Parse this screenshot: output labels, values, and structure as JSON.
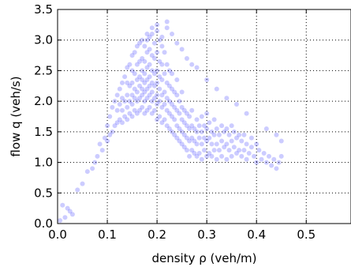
{
  "chart_data": {
    "type": "scatter",
    "title": "",
    "xlabel": "density ρ (veh/m)",
    "ylabel": "flow q (veh/s)",
    "xlim": [
      0.0,
      0.59
    ],
    "ylim": [
      0.0,
      3.5
    ],
    "xticks": [
      0.0,
      0.1,
      0.2,
      0.3,
      0.4,
      0.5
    ],
    "xtick_labels": [
      "0.0",
      "0.1",
      "0.2",
      "0.3",
      "0.4",
      "0.5"
    ],
    "yticks": [
      0.0,
      0.5,
      1.0,
      1.5,
      2.0,
      2.5,
      3.0,
      3.5
    ],
    "ytick_labels": [
      "0.0",
      "0.5",
      "1.0",
      "1.5",
      "2.0",
      "2.5",
      "3.0",
      "3.5"
    ],
    "grid": true,
    "legend": "none",
    "point_color": "#0000ff",
    "point_opacity": 0.1,
    "series": [
      {
        "x": [
          0.005,
          0.01,
          0.015,
          0.02,
          0.025,
          0.03,
          0.04,
          0.05,
          0.06,
          0.07,
          0.075,
          0.08,
          0.085,
          0.09,
          0.095,
          0.1,
          0.1,
          0.105,
          0.105,
          0.11,
          0.11,
          0.115,
          0.115,
          0.12,
          0.12,
          0.12,
          0.125,
          0.125,
          0.125,
          0.13,
          0.13,
          0.13,
          0.13,
          0.135,
          0.135,
          0.135,
          0.14,
          0.14,
          0.14,
          0.14,
          0.14,
          0.145,
          0.145,
          0.145,
          0.145,
          0.15,
          0.15,
          0.15,
          0.15,
          0.15,
          0.15,
          0.155,
          0.155,
          0.155,
          0.155,
          0.155,
          0.16,
          0.16,
          0.16,
          0.16,
          0.16,
          0.16,
          0.165,
          0.165,
          0.165,
          0.165,
          0.165,
          0.165,
          0.17,
          0.17,
          0.17,
          0.17,
          0.17,
          0.17,
          0.17,
          0.175,
          0.175,
          0.175,
          0.175,
          0.175,
          0.175,
          0.175,
          0.18,
          0.18,
          0.18,
          0.18,
          0.18,
          0.18,
          0.18,
          0.185,
          0.185,
          0.185,
          0.185,
          0.185,
          0.185,
          0.185,
          0.19,
          0.19,
          0.19,
          0.19,
          0.19,
          0.19,
          0.19,
          0.195,
          0.195,
          0.195,
          0.195,
          0.195,
          0.195,
          0.2,
          0.2,
          0.2,
          0.2,
          0.2,
          0.2,
          0.2,
          0.205,
          0.205,
          0.205,
          0.205,
          0.205,
          0.205,
          0.21,
          0.21,
          0.21,
          0.21,
          0.21,
          0.21,
          0.215,
          0.215,
          0.215,
          0.215,
          0.215,
          0.22,
          0.22,
          0.22,
          0.22,
          0.22,
          0.22,
          0.225,
          0.225,
          0.225,
          0.225,
          0.225,
          0.23,
          0.23,
          0.23,
          0.23,
          0.23,
          0.235,
          0.235,
          0.235,
          0.235,
          0.24,
          0.24,
          0.24,
          0.24,
          0.24,
          0.245,
          0.245,
          0.245,
          0.245,
          0.25,
          0.25,
          0.25,
          0.25,
          0.25,
          0.255,
          0.255,
          0.255,
          0.255,
          0.26,
          0.26,
          0.26,
          0.26,
          0.265,
          0.265,
          0.265,
          0.265,
          0.27,
          0.27,
          0.27,
          0.27,
          0.275,
          0.275,
          0.275,
          0.28,
          0.28,
          0.28,
          0.28,
          0.285,
          0.285,
          0.285,
          0.29,
          0.29,
          0.29,
          0.29,
          0.295,
          0.295,
          0.295,
          0.3,
          0.3,
          0.3,
          0.3,
          0.305,
          0.305,
          0.305,
          0.31,
          0.31,
          0.31,
          0.315,
          0.315,
          0.315,
          0.32,
          0.32,
          0.32,
          0.325,
          0.325,
          0.33,
          0.33,
          0.33,
          0.335,
          0.335,
          0.34,
          0.34,
          0.34,
          0.345,
          0.345,
          0.35,
          0.35,
          0.35,
          0.355,
          0.355,
          0.36,
          0.36,
          0.365,
          0.365,
          0.37,
          0.37,
          0.375,
          0.375,
          0.38,
          0.38,
          0.385,
          0.39,
          0.39,
          0.395,
          0.4,
          0.4,
          0.405,
          0.41,
          0.415,
          0.42,
          0.425,
          0.43,
          0.435,
          0.44,
          0.445,
          0.45,
          0.45,
          0.2,
          0.21,
          0.22,
          0.23,
          0.24,
          0.19,
          0.18,
          0.25,
          0.26,
          0.27,
          0.28,
          0.3,
          0.32,
          0.34,
          0.36,
          0.38,
          0.42,
          0.44
        ],
        "y": [
          0.05,
          0.3,
          0.1,
          0.25,
          0.2,
          0.15,
          0.55,
          0.65,
          0.85,
          0.9,
          1.0,
          1.1,
          1.3,
          1.2,
          1.4,
          1.35,
          1.6,
          1.45,
          1.75,
          1.5,
          1.9,
          1.6,
          2.0,
          1.65,
          1.85,
          2.1,
          1.7,
          1.95,
          2.2,
          1.65,
          1.85,
          2.05,
          2.3,
          1.75,
          2.0,
          2.4,
          1.7,
          1.9,
          2.1,
          2.3,
          2.55,
          1.8,
          2.0,
          2.25,
          2.6,
          1.75,
          1.95,
          2.1,
          2.3,
          2.5,
          2.75,
          1.85,
          2.05,
          2.2,
          2.45,
          2.8,
          1.8,
          2.0,
          2.15,
          2.35,
          2.6,
          2.9,
          1.85,
          2.05,
          2.25,
          2.4,
          2.65,
          2.95,
          1.9,
          2.1,
          2.2,
          2.35,
          2.5,
          2.7,
          3.0,
          1.8,
          2.0,
          2.15,
          2.3,
          2.45,
          2.65,
          2.9,
          1.85,
          2.05,
          2.2,
          2.35,
          2.55,
          2.8,
          3.1,
          1.9,
          2.1,
          2.25,
          2.4,
          2.6,
          2.85,
          3.05,
          1.8,
          2.0,
          2.15,
          2.3,
          2.5,
          2.75,
          3.2,
          1.85,
          2.05,
          2.25,
          2.45,
          2.7,
          2.95,
          1.7,
          1.95,
          2.1,
          2.3,
          2.5,
          2.8,
          3.25,
          1.75,
          2.0,
          2.2,
          2.4,
          2.65,
          3.0,
          1.65,
          1.9,
          2.1,
          2.35,
          2.6,
          2.9,
          1.7,
          1.95,
          2.15,
          2.45,
          2.8,
          1.6,
          1.85,
          2.05,
          2.3,
          2.6,
          3.3,
          1.55,
          1.8,
          2.0,
          2.25,
          2.5,
          1.5,
          1.75,
          1.95,
          2.2,
          2.45,
          1.45,
          1.7,
          1.9,
          2.15,
          1.4,
          1.6,
          1.85,
          2.1,
          2.35,
          1.35,
          1.55,
          1.8,
          2.0,
          1.3,
          1.5,
          1.7,
          1.9,
          2.15,
          1.25,
          1.45,
          1.65,
          1.85,
          1.2,
          1.4,
          1.6,
          1.8,
          1.1,
          1.35,
          1.55,
          1.75,
          1.2,
          1.4,
          1.6,
          1.85,
          1.15,
          1.35,
          1.55,
          1.1,
          1.3,
          1.5,
          1.7,
          1.15,
          1.4,
          1.6,
          1.05,
          1.3,
          1.5,
          1.75,
          1.2,
          1.4,
          1.6,
          1.1,
          1.35,
          1.55,
          1.8,
          1.15,
          1.4,
          1.65,
          1.1,
          1.3,
          1.5,
          1.2,
          1.45,
          1.7,
          1.05,
          1.3,
          1.55,
          1.2,
          1.45,
          1.1,
          1.35,
          1.6,
          1.25,
          1.5,
          1.05,
          1.3,
          1.55,
          1.2,
          1.45,
          1.1,
          1.35,
          1.6,
          1.25,
          1.5,
          1.15,
          1.4,
          1.2,
          1.45,
          1.1,
          1.35,
          1.2,
          1.45,
          1.05,
          1.3,
          1.15,
          1.25,
          1.4,
          1.1,
          1.0,
          1.3,
          1.2,
          1.05,
          1.15,
          1.0,
          1.1,
          0.95,
          1.05,
          0.9,
          1.0,
          1.1,
          1.35,
          3.15,
          3.05,
          3.2,
          3.1,
          2.95,
          3.1,
          3.0,
          2.85,
          2.7,
          2.6,
          2.55,
          2.35,
          2.2,
          2.05,
          1.95,
          1.8,
          1.55,
          1.45
        ]
      }
    ]
  }
}
